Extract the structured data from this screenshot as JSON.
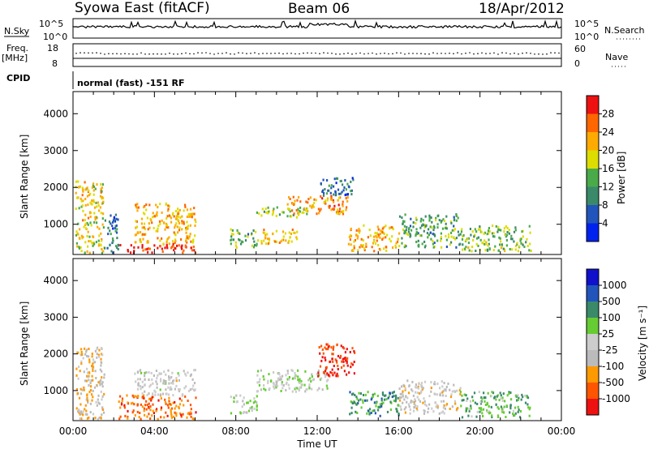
{
  "header": {
    "station": "Syowa East (fitACF)",
    "beam": "Beam 06",
    "date": "18/Apr/2012"
  },
  "strip_labels": {
    "nsky": "N.Sky",
    "freq": "Freq.",
    "freq_unit": "[MHz]",
    "cpid": "CPID",
    "nsearch": "N.Search",
    "nave": "Nave",
    "cpid_text": "normal (fast) -151 RF"
  },
  "strip_ticks": {
    "nsky_left": [
      "10^5",
      "10^0"
    ],
    "nsky_right": [
      "10^5",
      "10^0"
    ],
    "freq_left": [
      "18",
      "8"
    ],
    "nave_right": [
      "60",
      "0"
    ]
  },
  "colors": {
    "power_scale": [
      "#0022ee",
      "#2255bb",
      "#3a8a6a",
      "#4aaa4a",
      "#dddd00",
      "#ffaa00",
      "#ff6600",
      "#ee1111"
    ],
    "velocity_scale": [
      "#ee1111",
      "#ff5500",
      "#ff9900",
      "#bbbbbb",
      "#cccccc",
      "#66cc33",
      "#3a8a6a",
      "#2255bb",
      "#1111cc"
    ]
  },
  "chart_data": [
    {
      "type": "heatmap",
      "panel": "power",
      "xlabel": "",
      "ylabel": "Slant Range [km]",
      "ylim": [
        180,
        4600
      ],
      "xlim": [
        "00:00",
        "24:00"
      ],
      "y_ticks": [
        "1000",
        "2000",
        "3000",
        "4000"
      ],
      "colorbar_label": "Power [dB]",
      "colorbar_ticks": [
        "4",
        "8",
        "12",
        "16",
        "20",
        "24",
        "28"
      ],
      "colorbar_range": [
        0,
        30
      ],
      "regions": [
        {
          "t0": 0.1,
          "t1": 1.5,
          "r0": 250,
          "r1": 2200,
          "value": 18
        },
        {
          "t0": 2.2,
          "t1": 6.0,
          "r0": 250,
          "r1": 500,
          "value": 28
        },
        {
          "t0": 3.0,
          "t1": 6.0,
          "r0": 500,
          "r1": 1600,
          "value": 20
        },
        {
          "t0": 1.5,
          "t1": 2.2,
          "r0": 250,
          "r1": 1300,
          "value": 8
        },
        {
          "t0": 7.7,
          "t1": 9.0,
          "r0": 400,
          "r1": 900,
          "value": 12
        },
        {
          "t0": 9.0,
          "t1": 11.0,
          "r0": 500,
          "r1": 900,
          "value": 20
        },
        {
          "t0": 9.0,
          "t1": 11.5,
          "r0": 1200,
          "r1": 1500,
          "value": 14
        },
        {
          "t0": 10.5,
          "t1": 13.5,
          "r0": 1300,
          "r1": 1800,
          "value": 22
        },
        {
          "t0": 12.0,
          "t1": 13.8,
          "r0": 1800,
          "r1": 2300,
          "value": 8
        },
        {
          "t0": 13.5,
          "t1": 16.0,
          "r0": 300,
          "r1": 1000,
          "value": 20
        },
        {
          "t0": 16.0,
          "t1": 19.0,
          "r0": 400,
          "r1": 1300,
          "value": 12
        },
        {
          "t0": 19.0,
          "t1": 22.5,
          "r0": 300,
          "r1": 1000,
          "value": 14
        }
      ]
    },
    {
      "type": "heatmap",
      "panel": "velocity",
      "xlabel": "Time UT",
      "ylabel": "Slant Range [km]",
      "ylim": [
        180,
        4600
      ],
      "xlim": [
        "00:00",
        "24:00"
      ],
      "x_ticks": [
        "00:00",
        "04:00",
        "08:00",
        "12:00",
        "16:00",
        "20:00",
        "00:00"
      ],
      "y_ticks": [
        "1000",
        "2000",
        "3000",
        "4000"
      ],
      "colorbar_label": "Velocity [m s⁻¹]",
      "colorbar_ticks": [
        "1000",
        "500",
        "100",
        "25",
        "-25",
        "-100",
        "-500",
        "-1000"
      ],
      "regions": [
        {
          "t0": 0.1,
          "t1": 1.5,
          "r0": 250,
          "r1": 2200,
          "value": -300
        },
        {
          "t0": 2.2,
          "t1": 6.0,
          "r0": 250,
          "r1": 900,
          "value": -600
        },
        {
          "t0": 3.0,
          "t1": 6.0,
          "r0": 900,
          "r1": 1600,
          "value": -100
        },
        {
          "t0": 7.7,
          "t1": 9.0,
          "r0": 400,
          "r1": 900,
          "value": 60
        },
        {
          "t0": 9.0,
          "t1": 12.5,
          "r0": 1000,
          "r1": 1600,
          "value": 0
        },
        {
          "t0": 12.0,
          "t1": 13.8,
          "r0": 1400,
          "r1": 2300,
          "value": -800
        },
        {
          "t0": 13.5,
          "t1": 16.0,
          "r0": 300,
          "r1": 1000,
          "value": 400
        },
        {
          "t0": 16.0,
          "t1": 19.0,
          "r0": 400,
          "r1": 1300,
          "value": -150
        },
        {
          "t0": 19.0,
          "t1": 22.5,
          "r0": 300,
          "r1": 1000,
          "value": 300
        }
      ]
    }
  ]
}
